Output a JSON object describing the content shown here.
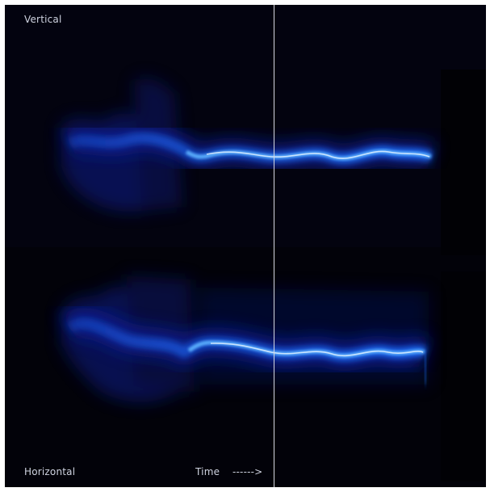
{
  "labels": {
    "vertical": "Vertical",
    "horizontal": "Horizontal",
    "time": "Time",
    "arrow": "------>"
  },
  "colors": {
    "background": "#02020c",
    "trace_core": "#e8f4ff",
    "trace_glow": "#1e6fff",
    "trace_halo": "#0a1a80",
    "cursor": "#d7d9e0"
  }
}
